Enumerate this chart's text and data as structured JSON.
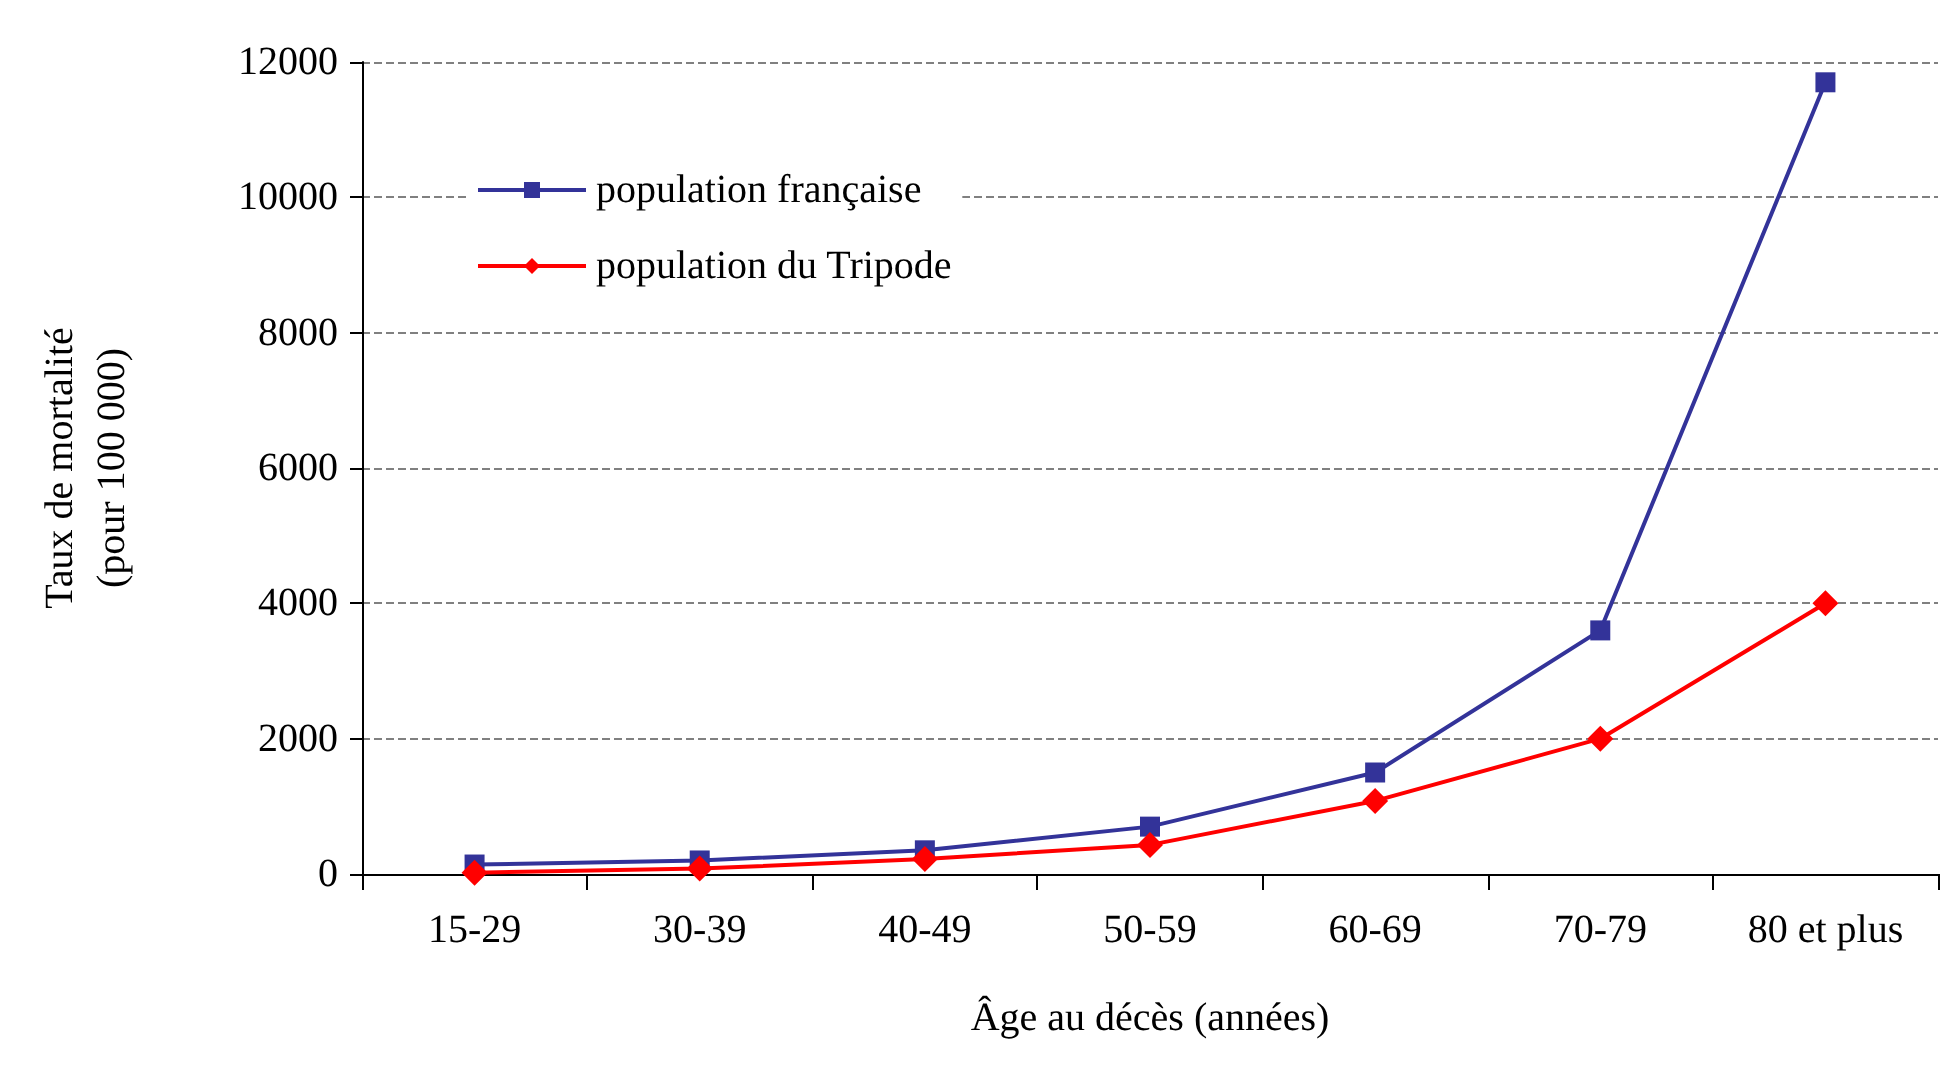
{
  "chart_data": {
    "type": "line",
    "xlabel": "Âge au décès (années)",
    "ylabel": "Taux de mortalité\n(pour 100 000)",
    "categories": [
      "15-29",
      "30-39",
      "40-49",
      "50-59",
      "60-69",
      "70-79",
      "80 et plus"
    ],
    "series": [
      {
        "name": "population française",
        "color": "#333399",
        "marker": "square",
        "values": [
          140,
          200,
          350,
          700,
          1500,
          3600,
          11700
        ]
      },
      {
        "name": "population du Tripode",
        "color": "#ff0000",
        "marker": "diamond",
        "values": [
          20,
          80,
          220,
          430,
          1080,
          2000,
          4000
        ]
      }
    ],
    "ylim": [
      0,
      12000
    ],
    "yticks": [
      0,
      2000,
      4000,
      6000,
      8000,
      10000,
      12000
    ],
    "grid": "y",
    "legend": "top left"
  }
}
